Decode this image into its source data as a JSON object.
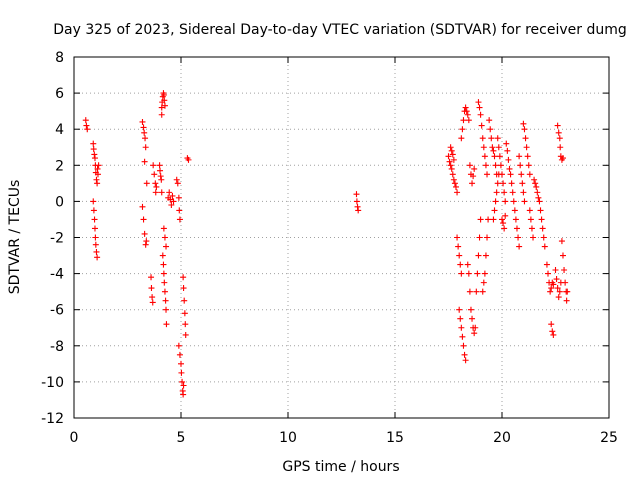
{
  "chart_data": {
    "type": "scatter",
    "title": "Day 325 of 2023, Sidereal Day-to-day VTEC variation (SDTVAR) for receiver dumg",
    "xlabel": "GPS time / hours",
    "ylabel": "SDTVAR / TECUs",
    "xlim": [
      0,
      25
    ],
    "ylim": [
      -12,
      8
    ],
    "xticks": [
      0,
      5,
      10,
      15,
      20,
      25
    ],
    "yticks": [
      -12,
      -10,
      -8,
      -6,
      -4,
      -2,
      0,
      2,
      4,
      6,
      8
    ],
    "grid": true,
    "marker": "+",
    "color": "#ff0000",
    "series": [
      {
        "name": "SDTVAR",
        "points": [
          [
            0.55,
            4.5
          ],
          [
            0.58,
            4.2
          ],
          [
            0.62,
            4.0
          ],
          [
            0.9,
            3.2
          ],
          [
            0.92,
            2.9
          ],
          [
            0.95,
            2.6
          ],
          [
            0.98,
            2.4
          ],
          [
            1.0,
            2.0
          ],
          [
            1.02,
            1.6
          ],
          [
            1.05,
            1.2
          ],
          [
            1.08,
            1.0
          ],
          [
            0.9,
            0.0
          ],
          [
            0.93,
            -0.5
          ],
          [
            0.96,
            -1.0
          ],
          [
            0.98,
            -1.5
          ],
          [
            1.0,
            -2.0
          ],
          [
            1.02,
            -2.4
          ],
          [
            1.05,
            -2.8
          ],
          [
            1.08,
            -3.1
          ],
          [
            1.1,
            1.8
          ],
          [
            1.12,
            1.5
          ],
          [
            1.15,
            2.0
          ],
          [
            3.2,
            4.4
          ],
          [
            3.25,
            4.1
          ],
          [
            3.28,
            3.8
          ],
          [
            3.32,
            3.5
          ],
          [
            3.35,
            3.0
          ],
          [
            3.3,
            2.2
          ],
          [
            3.4,
            1.0
          ],
          [
            3.2,
            -0.3
          ],
          [
            3.25,
            -1.0
          ],
          [
            3.3,
            -1.8
          ],
          [
            3.35,
            -2.4
          ],
          [
            3.38,
            -2.2
          ],
          [
            3.6,
            -4.2
          ],
          [
            3.62,
            -4.8
          ],
          [
            3.65,
            -5.3
          ],
          [
            3.68,
            -5.6
          ],
          [
            3.7,
            2.0
          ],
          [
            3.75,
            1.5
          ],
          [
            3.8,
            1.0
          ],
          [
            3.82,
            0.5
          ],
          [
            3.85,
            0.8
          ],
          [
            4.0,
            2.0
          ],
          [
            4.02,
            1.7
          ],
          [
            4.05,
            1.4
          ],
          [
            4.08,
            1.2
          ],
          [
            4.1,
            0.5
          ],
          [
            4.1,
            5.2
          ],
          [
            4.12,
            5.5
          ],
          [
            4.15,
            5.8
          ],
          [
            4.18,
            6.0
          ],
          [
            4.2,
            5.9
          ],
          [
            4.22,
            5.6
          ],
          [
            4.25,
            5.3
          ],
          [
            4.1,
            4.8
          ],
          [
            4.15,
            -3.0
          ],
          [
            4.18,
            -3.5
          ],
          [
            4.2,
            -4.0
          ],
          [
            4.22,
            -4.5
          ],
          [
            4.25,
            -5.0
          ],
          [
            4.28,
            -5.5
          ],
          [
            4.3,
            -6.0
          ],
          [
            4.32,
            -6.8
          ],
          [
            4.2,
            -1.5
          ],
          [
            4.25,
            -2.0
          ],
          [
            4.3,
            -2.5
          ],
          [
            4.4,
            0.2
          ],
          [
            4.45,
            0.5
          ],
          [
            4.5,
            0.1
          ],
          [
            4.55,
            -0.2
          ],
          [
            4.6,
            0.3
          ],
          [
            4.65,
            0.0
          ],
          [
            4.8,
            1.2
          ],
          [
            4.85,
            1.0
          ],
          [
            4.9,
            0.2
          ],
          [
            4.92,
            -0.5
          ],
          [
            4.95,
            -1.0
          ],
          [
            4.9,
            -8.0
          ],
          [
            4.95,
            -8.5
          ],
          [
            5.0,
            -9.0
          ],
          [
            5.02,
            -9.5
          ],
          [
            5.05,
            -10.0
          ],
          [
            5.08,
            -10.5
          ],
          [
            5.1,
            -10.7
          ],
          [
            5.12,
            -10.2
          ],
          [
            5.1,
            -4.2
          ],
          [
            5.12,
            -4.8
          ],
          [
            5.15,
            -5.5
          ],
          [
            5.18,
            -6.2
          ],
          [
            5.2,
            -6.8
          ],
          [
            5.22,
            -7.4
          ],
          [
            5.3,
            2.4
          ],
          [
            5.35,
            2.3
          ],
          [
            13.2,
            0.4
          ],
          [
            13.22,
            0.0
          ],
          [
            13.25,
            -0.3
          ],
          [
            13.28,
            -0.5
          ],
          [
            17.5,
            2.5
          ],
          [
            17.55,
            2.2
          ],
          [
            17.6,
            2.0
          ],
          [
            17.65,
            1.8
          ],
          [
            17.7,
            1.5
          ],
          [
            17.75,
            1.2
          ],
          [
            17.8,
            1.0
          ],
          [
            17.85,
            0.8
          ],
          [
            17.9,
            0.5
          ],
          [
            17.6,
            3.0
          ],
          [
            17.65,
            2.8
          ],
          [
            17.7,
            2.6
          ],
          [
            17.75,
            2.3
          ],
          [
            17.9,
            -2.0
          ],
          [
            17.95,
            -2.5
          ],
          [
            18.0,
            -3.0
          ],
          [
            18.05,
            -3.5
          ],
          [
            18.1,
            -4.0
          ],
          [
            18.0,
            -6.0
          ],
          [
            18.05,
            -6.5
          ],
          [
            18.1,
            -7.0
          ],
          [
            18.15,
            -7.5
          ],
          [
            18.2,
            -8.0
          ],
          [
            18.25,
            -8.5
          ],
          [
            18.3,
            -8.8
          ],
          [
            18.1,
            3.5
          ],
          [
            18.15,
            4.0
          ],
          [
            18.2,
            4.5
          ],
          [
            18.25,
            5.0
          ],
          [
            18.3,
            5.2
          ],
          [
            18.35,
            5.0
          ],
          [
            18.4,
            4.8
          ],
          [
            18.45,
            4.5
          ],
          [
            18.5,
            2.0
          ],
          [
            18.55,
            1.5
          ],
          [
            18.6,
            1.0
          ],
          [
            18.65,
            1.4
          ],
          [
            18.7,
            1.8
          ],
          [
            18.4,
            -3.5
          ],
          [
            18.45,
            -4.0
          ],
          [
            18.5,
            -5.0
          ],
          [
            18.55,
            -6.0
          ],
          [
            18.6,
            -6.5
          ],
          [
            18.65,
            -7.0
          ],
          [
            18.7,
            -7.3
          ],
          [
            18.75,
            -7.0
          ],
          [
            18.8,
            -5.0
          ],
          [
            18.85,
            -4.0
          ],
          [
            18.9,
            -3.0
          ],
          [
            18.95,
            -2.0
          ],
          [
            19.0,
            -1.0
          ],
          [
            18.9,
            5.5
          ],
          [
            18.95,
            5.2
          ],
          [
            19.0,
            4.8
          ],
          [
            19.05,
            4.2
          ],
          [
            19.1,
            3.5
          ],
          [
            19.15,
            3.0
          ],
          [
            19.2,
            2.5
          ],
          [
            19.25,
            2.0
          ],
          [
            19.3,
            1.5
          ],
          [
            19.1,
            -5.0
          ],
          [
            19.15,
            -4.5
          ],
          [
            19.2,
            -4.0
          ],
          [
            19.25,
            -3.0
          ],
          [
            19.3,
            -2.0
          ],
          [
            19.35,
            -1.0
          ],
          [
            19.4,
            4.5
          ],
          [
            19.45,
            4.0
          ],
          [
            19.5,
            3.5
          ],
          [
            19.55,
            3.0
          ],
          [
            19.6,
            2.8
          ],
          [
            19.65,
            2.5
          ],
          [
            19.7,
            2.0
          ],
          [
            19.75,
            1.5
          ],
          [
            19.6,
            -1.0
          ],
          [
            19.65,
            -0.5
          ],
          [
            19.7,
            0.0
          ],
          [
            19.75,
            0.5
          ],
          [
            19.8,
            1.0
          ],
          [
            19.85,
            1.5
          ],
          [
            19.8,
            3.5
          ],
          [
            19.85,
            3.0
          ],
          [
            19.9,
            2.5
          ],
          [
            19.95,
            2.0
          ],
          [
            20.0,
            1.5
          ],
          [
            20.05,
            1.0
          ],
          [
            20.1,
            0.5
          ],
          [
            20.15,
            0.0
          ],
          [
            20.0,
            -1.0
          ],
          [
            20.05,
            -1.2
          ],
          [
            20.1,
            -1.5
          ],
          [
            20.15,
            -0.8
          ],
          [
            20.2,
            3.2
          ],
          [
            20.25,
            2.8
          ],
          [
            20.3,
            2.3
          ],
          [
            20.35,
            1.8
          ],
          [
            20.4,
            1.5
          ],
          [
            20.45,
            1.0
          ],
          [
            20.5,
            0.5
          ],
          [
            20.55,
            0.0
          ],
          [
            20.6,
            -0.5
          ],
          [
            20.65,
            -1.0
          ],
          [
            20.7,
            -1.5
          ],
          [
            20.75,
            -2.0
          ],
          [
            20.8,
            -2.5
          ],
          [
            20.8,
            2.5
          ],
          [
            20.85,
            2.0
          ],
          [
            20.9,
            1.5
          ],
          [
            20.95,
            1.0
          ],
          [
            21.0,
            0.5
          ],
          [
            21.05,
            0.0
          ],
          [
            21.0,
            4.3
          ],
          [
            21.05,
            4.0
          ],
          [
            21.1,
            3.5
          ],
          [
            21.15,
            3.0
          ],
          [
            21.2,
            2.5
          ],
          [
            21.25,
            2.0
          ],
          [
            21.3,
            1.5
          ],
          [
            21.3,
            -0.5
          ],
          [
            21.35,
            -1.0
          ],
          [
            21.4,
            -1.5
          ],
          [
            21.45,
            -2.0
          ],
          [
            21.5,
            1.2
          ],
          [
            21.55,
            1.0
          ],
          [
            21.6,
            0.8
          ],
          [
            21.65,
            0.5
          ],
          [
            21.7,
            0.2
          ],
          [
            21.75,
            0.0
          ],
          [
            21.8,
            -0.5
          ],
          [
            21.85,
            -1.0
          ],
          [
            21.9,
            -1.5
          ],
          [
            21.95,
            -2.0
          ],
          [
            22.0,
            -2.5
          ],
          [
            22.1,
            -3.5
          ],
          [
            22.15,
            -4.0
          ],
          [
            22.2,
            -4.5
          ],
          [
            22.25,
            -5.0
          ],
          [
            22.3,
            -4.8
          ],
          [
            22.35,
            -4.5
          ],
          [
            22.4,
            -4.6
          ],
          [
            22.3,
            -6.8
          ],
          [
            22.35,
            -7.2
          ],
          [
            22.4,
            -7.4
          ],
          [
            22.5,
            -3.8
          ],
          [
            22.55,
            -4.3
          ],
          [
            22.6,
            -4.8
          ],
          [
            22.65,
            -5.3
          ],
          [
            22.7,
            -5.0
          ],
          [
            22.75,
            -4.5
          ],
          [
            22.6,
            4.2
          ],
          [
            22.65,
            3.8
          ],
          [
            22.7,
            3.5
          ],
          [
            22.72,
            3.0
          ],
          [
            22.75,
            2.5
          ],
          [
            22.8,
            2.3
          ],
          [
            22.85,
            2.4
          ],
          [
            22.8,
            -2.2
          ],
          [
            22.85,
            -3.0
          ],
          [
            22.9,
            -3.8
          ],
          [
            22.95,
            -4.5
          ],
          [
            23.0,
            -5.0
          ],
          [
            23.02,
            -5.5
          ],
          [
            23.05,
            -5.0
          ]
        ]
      }
    ]
  }
}
